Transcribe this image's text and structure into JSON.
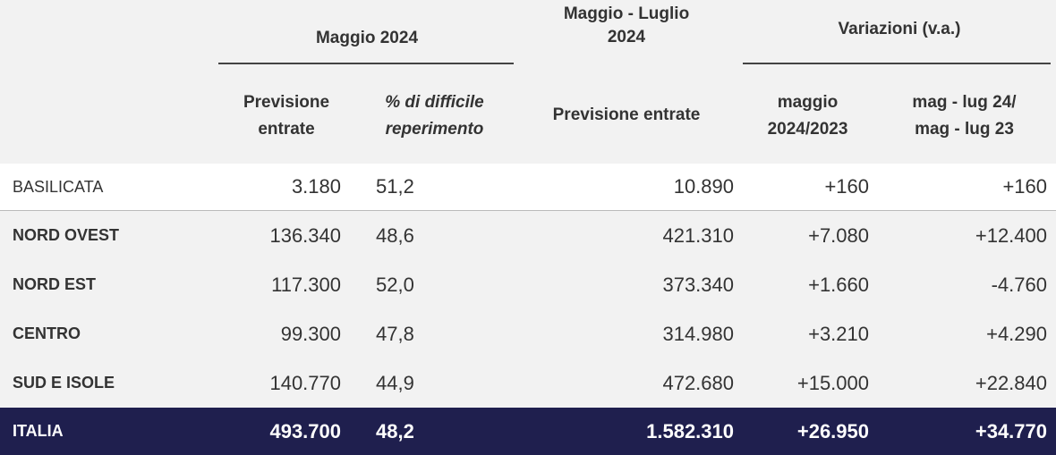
{
  "header": {
    "group1": "Maggio 2024",
    "group2_line1": "Maggio  - Luglio",
    "group2_line2": "2024",
    "group3": "Variazioni (v.a.)",
    "col1_line1": "Previsione",
    "col1_line2": "entrate",
    "col2_line1": "% di difficile",
    "col2_line2": "reperimento",
    "col3": "Previsione entrate",
    "col4_line1": "maggio",
    "col4_line2": "2024/2023",
    "col5_line1": "mag - lug 24/",
    "col5_line2": "mag - lug 23"
  },
  "rows": [
    {
      "name": "BASILICATA",
      "c1": "3.180",
      "c2": "51,2",
      "c3": "10.890",
      "c4": "+160",
      "c5": "+160"
    },
    {
      "name": "NORD OVEST",
      "c1": "136.340",
      "c2": "48,6",
      "c3": "421.310",
      "c4": "+7.080",
      "c5": "+12.400"
    },
    {
      "name": "NORD EST",
      "c1": "117.300",
      "c2": "52,0",
      "c3": "373.340",
      "c4": "+1.660",
      "c5": "-4.760"
    },
    {
      "name": "CENTRO",
      "c1": "99.300",
      "c2": "47,8",
      "c3": "314.980",
      "c4": "+3.210",
      "c5": "+4.290"
    },
    {
      "name": "SUD E ISOLE",
      "c1": "140.770",
      "c2": "44,9",
      "c3": "472.680",
      "c4": "+15.000",
      "c5": "+22.840"
    },
    {
      "name": "ITALIA",
      "c1": "493.700",
      "c2": "48,2",
      "c3": "1.582.310",
      "c4": "+26.950",
      "c5": "+34.770"
    }
  ],
  "colors": {
    "header_bg": "#f2f2f2",
    "total_bg": "#1f1f4e",
    "total_text": "#ffffff"
  }
}
